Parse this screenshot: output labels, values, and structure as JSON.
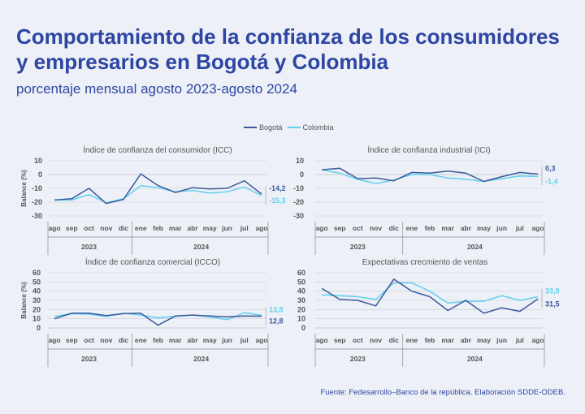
{
  "header": {
    "title": "Comportamiento de la confianza de los consumidores y empresarios en Bogotá y Colombia",
    "subtitle": "porcentaje mensual agosto 2023-agosto 2024"
  },
  "legend": {
    "bogota": "Bogotá",
    "colombia": "Colombia"
  },
  "source": "Fuente: Fedesarrollo–Banco de la república. Elaboración SDDE-ODEB.",
  "colors": {
    "bogota": "#3a5a9c",
    "colombia": "#5fd0ef",
    "title": "#2d46a3",
    "grid": "#c9ccd6"
  },
  "chart_data": [
    {
      "type": "line",
      "title": "Índice de confianza del consumidor (ICC)",
      "ylabel": "Balance (%)",
      "ylim": [
        -30,
        10
      ],
      "yticks": [
        -30,
        -20,
        -10,
        0,
        10
      ],
      "categories": [
        "ago",
        "sep",
        "oct",
        "nov",
        "dic",
        "ene",
        "feb",
        "mar",
        "abr",
        "may",
        "jun",
        "jul",
        "ago"
      ],
      "years": [
        {
          "label": "2023",
          "from": 0,
          "to": 4
        },
        {
          "label": "2024",
          "from": 5,
          "to": 12
        }
      ],
      "series": [
        {
          "name": "Bogotá",
          "values": [
            -18.5,
            -17.5,
            -10,
            -21,
            -18,
            0.5,
            -8,
            -13,
            -9.5,
            -10.5,
            -10,
            -4.5,
            -14.2
          ]
        },
        {
          "name": "Colombia",
          "values": [
            -18.5,
            -18.5,
            -14.5,
            -20.5,
            -17.5,
            -8,
            -9.5,
            -12.5,
            -11.5,
            -13.5,
            -12.5,
            -9,
            -15.3
          ]
        }
      ],
      "end_labels": {
        "Bogotá": "-14,2",
        "Colombia": "-15,3"
      }
    },
    {
      "type": "line",
      "title": "Índice de confianza industrial (ICI)",
      "ylabel": "",
      "ylim": [
        -30,
        10
      ],
      "yticks": [
        -30,
        -20,
        -10,
        0,
        10
      ],
      "categories": [
        "ago",
        "sep",
        "oct",
        "nov",
        "dic",
        "ene",
        "feb",
        "mar",
        "abr",
        "may",
        "jun",
        "jul",
        "ago"
      ],
      "years": [
        {
          "label": "2023",
          "from": 0,
          "to": 4
        },
        {
          "label": "2024",
          "from": 5,
          "to": 12
        }
      ],
      "series": [
        {
          "name": "Bogotá",
          "values": [
            3.5,
            4.5,
            -3,
            -2.5,
            -4.5,
            1.5,
            1,
            2.5,
            1,
            -5,
            -1.5,
            1.5,
            0.3
          ]
        },
        {
          "name": "Colombia",
          "values": [
            3.5,
            1,
            -3.5,
            -6.5,
            -4,
            0,
            0,
            -2.5,
            -3.5,
            -5,
            -3,
            -1,
            -1.4
          ]
        }
      ],
      "end_labels": {
        "Bogotá": "0,3",
        "Colombia": "-1,4"
      }
    },
    {
      "type": "line",
      "title": "Índice de confianza comercial (ICCO)",
      "ylabel": "Balance (%)",
      "ylim": [
        0,
        60
      ],
      "yticks": [
        0,
        10,
        20,
        30,
        40,
        50,
        60
      ],
      "categories": [
        "ago",
        "sep",
        "oct",
        "nov",
        "dic",
        "ene",
        "feb",
        "mar",
        "abr",
        "may",
        "jun",
        "jul",
        "ago"
      ],
      "years": [
        {
          "label": "2023",
          "from": 0,
          "to": 4
        },
        {
          "label": "2024",
          "from": 5,
          "to": 12
        }
      ],
      "series": [
        {
          "name": "Bogotá",
          "values": [
            10,
            16,
            16,
            13.5,
            15.5,
            16,
            3,
            13,
            14,
            13,
            12,
            13,
            12.8
          ]
        },
        {
          "name": "Colombia",
          "values": [
            12.5,
            15.5,
            15,
            12.5,
            16,
            14,
            11,
            12.5,
            14,
            12,
            9,
            16.5,
            13.8
          ]
        }
      ],
      "end_labels": {
        "Bogotá": "12,8",
        "Colombia": "13,8"
      }
    },
    {
      "type": "line",
      "title": "Expectativas crecmiento de ventas",
      "ylabel": "",
      "ylim": [
        0,
        60
      ],
      "yticks": [
        0,
        10,
        20,
        30,
        40,
        50,
        60
      ],
      "categories": [
        "ago",
        "sep",
        "oct",
        "nov",
        "dic",
        "ene",
        "feb",
        "mar",
        "abr",
        "may",
        "jun",
        "jul",
        "ago"
      ],
      "years": [
        {
          "label": "2023",
          "from": 0,
          "to": 4
        },
        {
          "label": "2024",
          "from": 5,
          "to": 12
        }
      ],
      "series": [
        {
          "name": "Bogotá",
          "values": [
            43,
            31,
            30,
            24,
            53,
            40,
            34,
            19,
            30,
            16,
            22,
            18,
            31.5
          ]
        },
        {
          "name": "Colombia",
          "values": [
            36,
            35,
            34,
            31,
            49,
            49,
            40,
            27,
            29,
            29,
            35,
            30,
            33.9
          ]
        }
      ],
      "end_labels": {
        "Bogotá": "31,5",
        "Colombia": "33,9"
      }
    }
  ]
}
